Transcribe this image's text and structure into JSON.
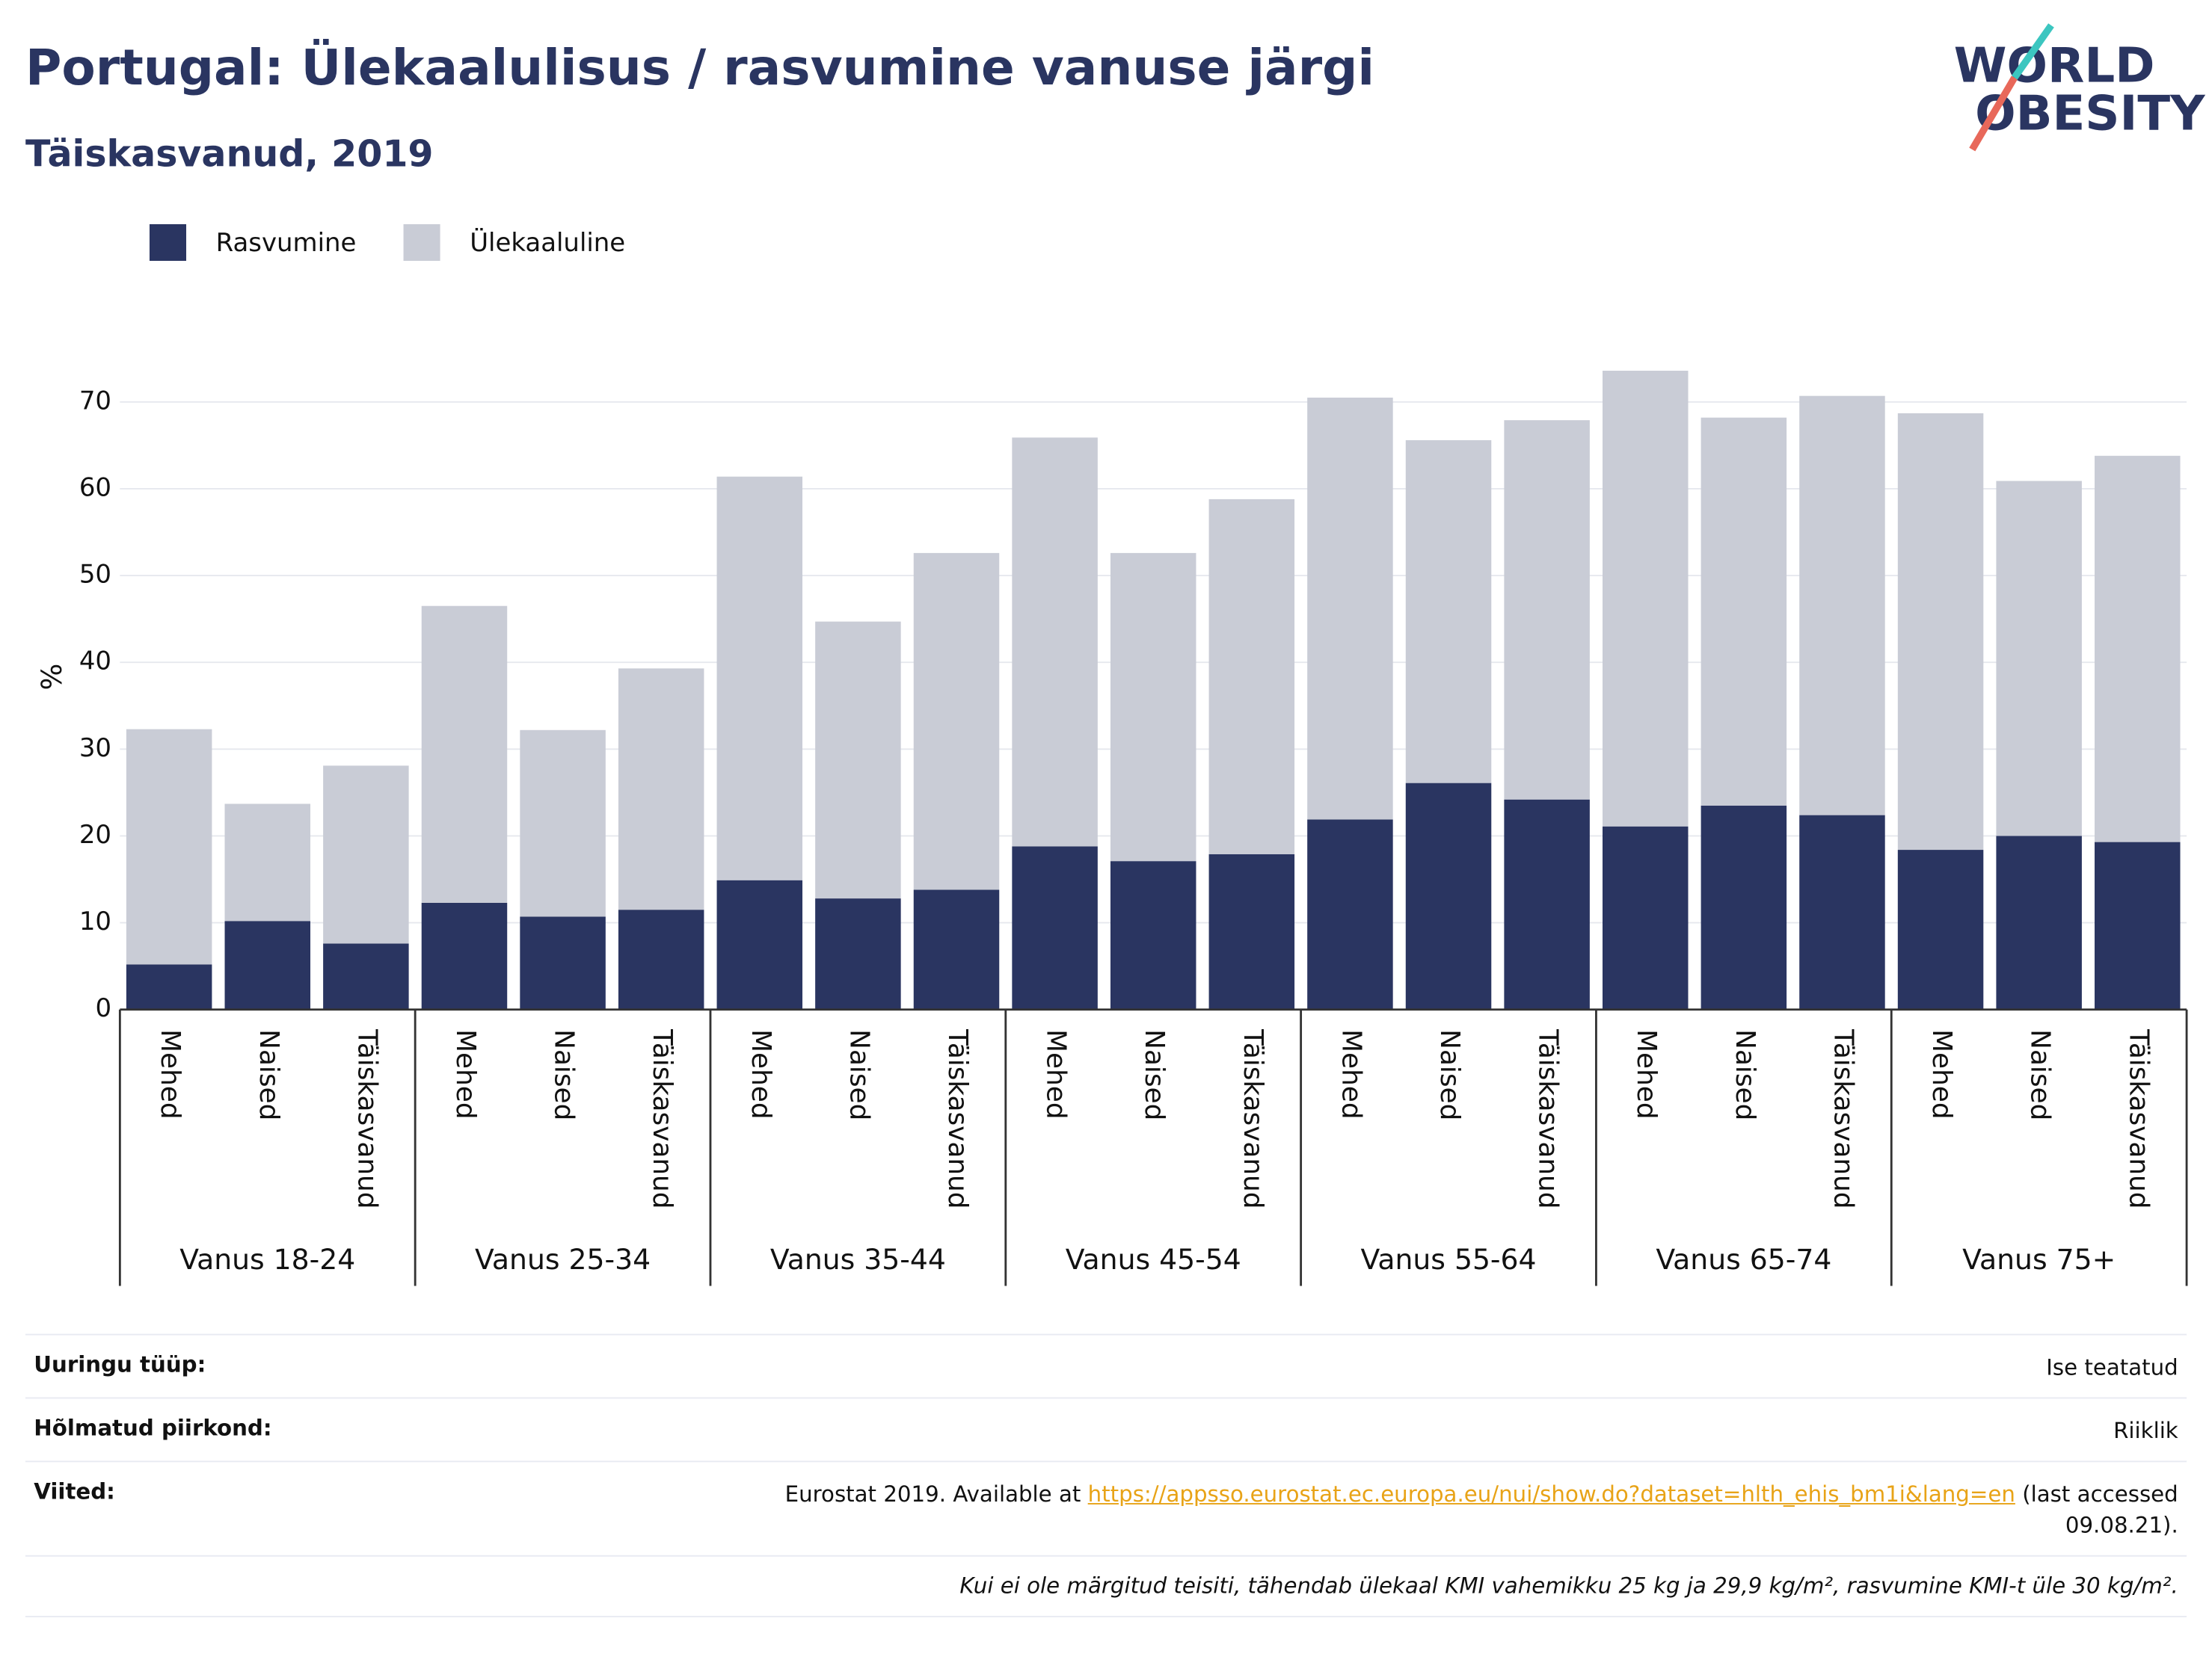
{
  "chart_data": {
    "type": "bar",
    "stacked": true,
    "title": "Portugal: Ülekaalulisus / rasvumine vanuse järgi",
    "subtitle": "Täiskasvanud, 2019",
    "y_label": "%",
    "groups": [
      "Vanus 18-24",
      "Vanus 25-34",
      "Vanus 35-44",
      "Vanus 45-54",
      "Vanus 55-64",
      "Vanus 65-74",
      "Vanus 75+"
    ],
    "categories": [
      "Mehed",
      "Naised",
      "Täiskasvanud",
      "Mehed",
      "Naised",
      "Täiskasvanud",
      "Mehed",
      "Naised",
      "Täiskasvanud",
      "Mehed",
      "Naised",
      "Täiskasvanud",
      "Mehed",
      "Naised",
      "Täiskasvanud",
      "Mehed",
      "Naised",
      "Täiskasvanud",
      "Mehed",
      "Naised",
      "Täiskasvanud"
    ],
    "series": [
      {
        "name": "Rasvumine",
        "color": "#2a3561",
        "values": [
          5.2,
          10.2,
          7.6,
          12.3,
          10.7,
          11.5,
          14.9,
          12.8,
          13.8,
          18.8,
          17.1,
          17.9,
          21.9,
          26.1,
          24.2,
          21.1,
          23.5,
          22.4,
          18.4,
          20.0,
          19.3
        ]
      },
      {
        "name": "Ülekaaluline",
        "color": "#c9ccd6",
        "values": [
          27.1,
          13.5,
          20.5,
          34.2,
          21.5,
          27.8,
          46.5,
          31.9,
          38.8,
          47.1,
          35.5,
          40.9,
          48.6,
          39.5,
          43.7,
          52.5,
          44.7,
          48.3,
          50.3,
          40.9,
          44.5
        ]
      }
    ],
    "ylim": [
      0,
      77
    ],
    "yticks": [
      0,
      10,
      20,
      30,
      40,
      50,
      60,
      70
    ],
    "grid": true
  },
  "logo": {
    "line1": "WORLD",
    "line2": "OBESITY"
  },
  "footer": {
    "rows": [
      {
        "label": "Uuringu tüüp:",
        "value": "Ise teatatud"
      },
      {
        "label": "Hõlmatud piirkond:",
        "value": "Riiklik"
      }
    ],
    "ref_label": "Viited:",
    "ref_prefix": "Eurostat 2019. Available at",
    "ref_url": "https://appsso.eurostat.ec.europa.eu/nui/show.do?dataset=hlth_ehis_bm1i&lang=en",
    "ref_suffix": "(last accessed 09.08.21).",
    "note": "Kui ei ole märgitud teisiti, tähendab ülekaal KMI vahemikku 25 kg ja 29,9 kg/m², rasvumine KMI-t üle 30 kg/m²."
  }
}
